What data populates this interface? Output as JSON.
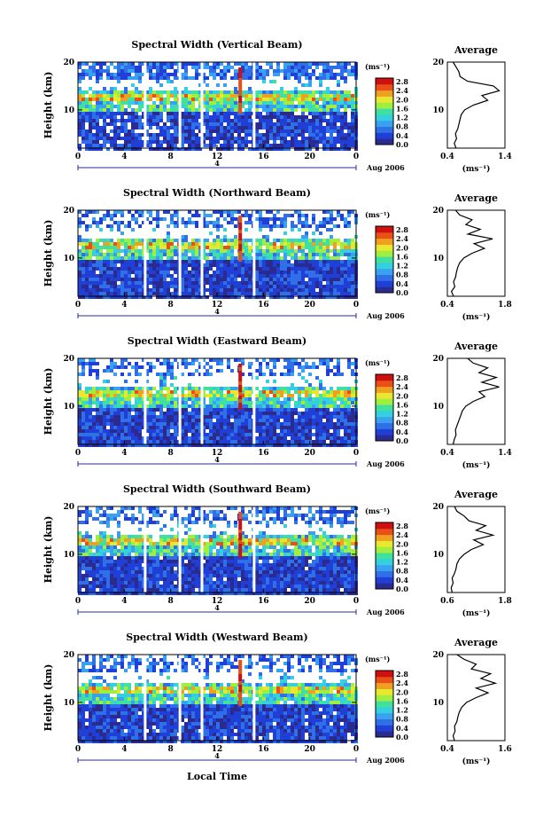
{
  "figure": {
    "xlabel": "Local Time",
    "ylabel": "Height (km)",
    "date_label": "Aug 2006",
    "day_label": "4",
    "avg_title": "Average",
    "avg_unit": "(ms⁻¹)",
    "cbar_unit": "(ms⁻¹)",
    "colors": {
      "scale": [
        "#2b2b8f",
        "#1f3fd6",
        "#2f6fe8",
        "#3aa0f0",
        "#35d0e0",
        "#40e0a0",
        "#a0ee40",
        "#e8e830",
        "#f0a020",
        "#e85018",
        "#d01010"
      ],
      "gap": "#ffffff",
      "line": "#000000",
      "axis_marker": "#2a2aa0"
    }
  },
  "chart_data": [
    {
      "type": "heatmap",
      "title": "Spectral Width (Vertical Beam)",
      "x_ticks": [
        "0",
        "4",
        "8",
        "12",
        "16",
        "20",
        "0"
      ],
      "y_ticks": [
        "20",
        "10"
      ],
      "xlim": [
        0,
        24
      ],
      "ylim": [
        2,
        20
      ],
      "gaps_hours": [
        5.8,
        8.8,
        10.7,
        15.2
      ],
      "colorbar": {
        "ticks": [
          "2.8",
          "2.4",
          "2.0",
          "1.6",
          "1.2",
          "0.8",
          "0.4",
          "0.0"
        ],
        "range": [
          0,
          3.0
        ]
      },
      "average_profile": {
        "x_ticks": [
          "0.4",
          "1.4"
        ],
        "y_ticks": [
          "20",
          "10"
        ],
        "xlim": [
          0.4,
          1.4
        ],
        "height_km": [
          2,
          3,
          4,
          5,
          6,
          7,
          8,
          9,
          10,
          11,
          12,
          13,
          14,
          15,
          16,
          17,
          18,
          19,
          20
        ],
        "values": [
          0.55,
          0.52,
          0.56,
          0.54,
          0.58,
          0.6,
          0.62,
          0.64,
          0.7,
          0.85,
          1.1,
          1.0,
          1.3,
          1.2,
          0.75,
          0.62,
          0.6,
          0.55,
          0.5
        ]
      }
    },
    {
      "type": "heatmap",
      "title": "Spectral Width (Northward Beam)",
      "x_ticks": [
        "0",
        "4",
        "8",
        "12",
        "16",
        "20",
        "0"
      ],
      "y_ticks": [
        "20",
        "10"
      ],
      "xlim": [
        0,
        24
      ],
      "ylim": [
        2,
        20
      ],
      "gaps_hours": [
        5.8,
        8.8,
        10.7,
        15.2
      ],
      "colorbar": {
        "ticks": [
          "2.8",
          "2.4",
          "2.0",
          "1.6",
          "1.2",
          "0.8",
          "0.4",
          "0.0"
        ],
        "range": [
          0,
          3.0
        ]
      },
      "average_profile": {
        "x_ticks": [
          "0.4",
          "1.8"
        ],
        "y_ticks": [
          "20",
          "10"
        ],
        "xlim": [
          0.4,
          1.8
        ],
        "height_km": [
          2,
          3,
          4,
          5,
          6,
          7,
          8,
          9,
          10,
          11,
          12,
          13,
          14,
          15,
          16,
          17,
          18,
          19,
          20
        ],
        "values": [
          0.55,
          0.5,
          0.58,
          0.55,
          0.6,
          0.62,
          0.65,
          0.7,
          0.8,
          1.0,
          1.3,
          1.05,
          1.5,
          0.9,
          1.2,
          0.85,
          1.0,
          0.7,
          0.6
        ]
      }
    },
    {
      "type": "heatmap",
      "title": "Spectral Width (Eastward Beam)",
      "x_ticks": [
        "0",
        "4",
        "8",
        "12",
        "16",
        "20",
        "0"
      ],
      "y_ticks": [
        "20",
        "10"
      ],
      "xlim": [
        0,
        24
      ],
      "ylim": [
        2,
        20
      ],
      "gaps_hours": [
        5.8,
        8.8,
        10.7,
        15.2
      ],
      "colorbar": {
        "ticks": [
          "2.8",
          "2.4",
          "2.0",
          "1.6",
          "1.2",
          "0.8",
          "0.4",
          "0.0"
        ],
        "range": [
          0,
          3.0
        ]
      },
      "average_profile": {
        "x_ticks": [
          "0.4",
          "1.4"
        ],
        "y_ticks": [
          "20",
          "10"
        ],
        "xlim": [
          0.4,
          1.4
        ],
        "height_km": [
          2,
          3,
          4,
          5,
          6,
          7,
          8,
          9,
          10,
          11,
          12,
          13,
          14,
          15,
          16,
          17,
          18,
          19,
          20
        ],
        "values": [
          0.5,
          0.52,
          0.55,
          0.54,
          0.57,
          0.6,
          0.63,
          0.66,
          0.72,
          0.85,
          1.05,
          0.95,
          1.3,
          1.0,
          1.25,
          0.95,
          1.1,
          0.85,
          0.75
        ]
      }
    },
    {
      "type": "heatmap",
      "title": "Spectral Width (Southward Beam)",
      "x_ticks": [
        "0",
        "4",
        "8",
        "12",
        "16",
        "20",
        "0"
      ],
      "y_ticks": [
        "20",
        "10"
      ],
      "xlim": [
        0,
        24
      ],
      "ylim": [
        2,
        20
      ],
      "gaps_hours": [
        5.8,
        8.8,
        10.7,
        15.2
      ],
      "colorbar": {
        "ticks": [
          "2.8",
          "2.4",
          "2.0",
          "1.6",
          "1.2",
          "0.8",
          "0.4",
          "0.0"
        ],
        "range": [
          0,
          3.0
        ]
      },
      "average_profile": {
        "x_ticks": [
          "0.6",
          "1.8"
        ],
        "y_ticks": [
          "20",
          "10"
        ],
        "xlim": [
          0.6,
          1.8
        ],
        "height_km": [
          2,
          3,
          4,
          5,
          6,
          7,
          8,
          9,
          10,
          11,
          12,
          13,
          14,
          15,
          16,
          17,
          18,
          19,
          20
        ],
        "values": [
          0.7,
          0.68,
          0.72,
          0.7,
          0.75,
          0.78,
          0.8,
          0.85,
          0.95,
          1.1,
          1.35,
          1.15,
          1.55,
          1.2,
          1.4,
          1.05,
          0.95,
          0.8,
          0.75
        ]
      }
    },
    {
      "type": "heatmap",
      "title": "Spectral Width (Westward Beam)",
      "x_ticks": [
        "0",
        "4",
        "8",
        "12",
        "16",
        "20",
        "0"
      ],
      "y_ticks": [
        "20",
        "10"
      ],
      "xlim": [
        0,
        24
      ],
      "ylim": [
        2,
        20
      ],
      "gaps_hours": [
        5.8,
        8.8,
        10.7,
        15.2
      ],
      "colorbar": {
        "ticks": [
          "2.8",
          "2.4",
          "2.0",
          "1.6",
          "1.2",
          "0.8",
          "0.4",
          "0.0"
        ],
        "range": [
          0,
          3.0
        ]
      },
      "average_profile": {
        "x_ticks": [
          "0.4",
          "1.6"
        ],
        "y_ticks": [
          "20",
          "10"
        ],
        "xlim": [
          0.4,
          1.6
        ],
        "height_km": [
          2,
          3,
          4,
          5,
          6,
          7,
          8,
          9,
          10,
          11,
          12,
          13,
          14,
          15,
          16,
          17,
          18,
          19,
          20
        ],
        "values": [
          0.55,
          0.52,
          0.56,
          0.55,
          0.6,
          0.62,
          0.65,
          0.7,
          0.8,
          1.0,
          1.25,
          1.0,
          1.4,
          1.1,
          1.3,
          0.9,
          1.0,
          0.75,
          0.6
        ]
      }
    }
  ]
}
